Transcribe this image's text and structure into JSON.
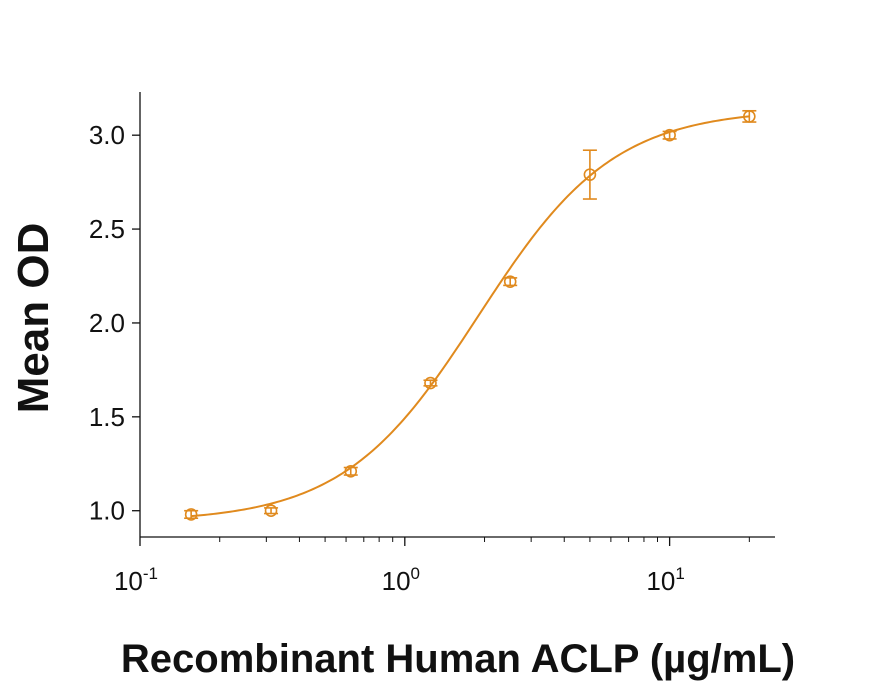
{
  "chart_data": {
    "type": "scatter",
    "xlabel": "Recombinant Human ACLP (µg/mL)",
    "ylabel": "Mean OD",
    "x_scale": "log",
    "xlim": [
      0.1,
      25
    ],
    "ylim": [
      0.86,
      3.23
    ],
    "y_ticks": [
      {
        "value": 1.0,
        "label": "1.0"
      },
      {
        "value": 1.5,
        "label": "1.5"
      },
      {
        "value": 2.0,
        "label": "2.0"
      },
      {
        "value": 2.5,
        "label": "2.5"
      },
      {
        "value": 3.0,
        "label": "3.0"
      }
    ],
    "x_ticks": [
      {
        "value": 0.1,
        "base": "10",
        "exp": "-1"
      },
      {
        "value": 1,
        "base": "10",
        "exp": "0"
      },
      {
        "value": 10,
        "base": "10",
        "exp": "1"
      }
    ],
    "series": [
      {
        "color": "#E08A1E",
        "x": [
          0.156,
          0.3125,
          0.625,
          1.25,
          2.5,
          5,
          10,
          20
        ],
        "y": [
          0.98,
          1.0,
          1.21,
          1.68,
          2.22,
          2.79,
          3.0,
          3.1
        ],
        "err": [
          0.02,
          0.015,
          0.02,
          0.015,
          0.02,
          0.13,
          0.02,
          0.03
        ]
      }
    ],
    "fit_curve": {
      "model": "4PL",
      "bottom": 0.94,
      "top": 3.14,
      "ec50": 1.9,
      "hill": 1.7,
      "color": "#E08A1E"
    },
    "grid": false,
    "legend": "none"
  }
}
